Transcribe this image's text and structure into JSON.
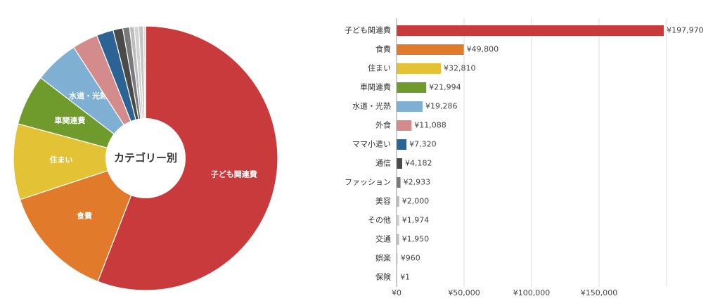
{
  "chart_data": [
    {
      "type": "pie",
      "donut": true,
      "center_title": "カテゴリー別",
      "categories": [
        "子ども関連費",
        "食費",
        "住まい",
        "車関連費",
        "水道・光熱",
        "外食",
        "ママ小遣い",
        "通信",
        "ファッション",
        "美容",
        "その他",
        "交通",
        "娯楽",
        "保険"
      ],
      "values": [
        197970,
        49800,
        32810,
        21994,
        19286,
        11088,
        7320,
        4182,
        2933,
        2000,
        1974,
        1950,
        960,
        1
      ],
      "slice_labels": [
        "子ども関連費",
        "食費",
        "住まい",
        "車関連費",
        "水道・光熱",
        "",
        "",
        "",
        "",
        "",
        "",
        "",
        "",
        ""
      ],
      "colors": [
        "#c93a3c",
        "#e27a2b",
        "#e3c235",
        "#6f9a2c",
        "#7fb0d3",
        "#d48b8c",
        "#2b6394",
        "#4a4a4a",
        "#7a7a7a",
        "#bdbdbd",
        "#d2d2d2",
        "#c4c4c4",
        "#e0e0e0",
        "#eeeeee"
      ]
    },
    {
      "type": "bar",
      "orientation": "horizontal",
      "categories": [
        "子ども関連費",
        "食費",
        "住まい",
        "車関連費",
        "水道・光熱",
        "外食",
        "ママ小遣い",
        "通信",
        "ファッション",
        "美容",
        "その他",
        "交通",
        "娯楽",
        "保険"
      ],
      "values": [
        197970,
        49800,
        32810,
        21994,
        19286,
        11088,
        7320,
        4182,
        2933,
        2000,
        1974,
        1950,
        960,
        1
      ],
      "value_labels": [
        "¥197,970",
        "¥49,800",
        "¥32,810",
        "¥21,994",
        "¥19,286",
        "¥11,088",
        "¥7,320",
        "¥4,182",
        "¥2,933",
        "¥2,000",
        "¥1,974",
        "¥1,950",
        "¥960",
        "¥1"
      ],
      "colors": [
        "#c93a3c",
        "#e27a2b",
        "#e3c235",
        "#6f9a2c",
        "#7fb0d3",
        "#d48b8c",
        "#2b6394",
        "#4a4a4a",
        "#7a7a7a",
        "#bdbdbd",
        "#d2d2d2",
        "#c4c4c4",
        "#e0e0e0",
        "#eeeeee"
      ],
      "xlim": [
        0,
        200000
      ],
      "xticks": [
        0,
        50000,
        100000,
        150000
      ],
      "xtick_labels": [
        "¥0",
        "¥50,000",
        "¥100,000",
        "¥150,000"
      ],
      "grid": true
    }
  ]
}
